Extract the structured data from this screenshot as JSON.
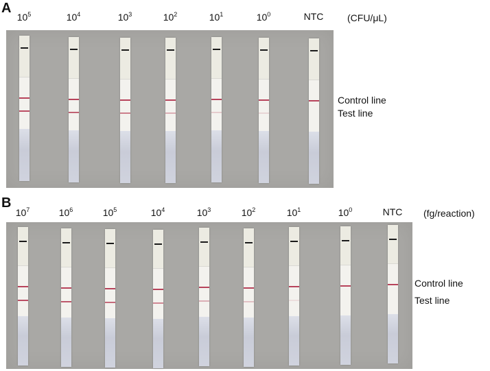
{
  "panel_a": {
    "letter": "A",
    "unit": "(CFU/μL)",
    "lanes": [
      {
        "base": "10",
        "exp": "5"
      },
      {
        "base": "10",
        "exp": "4"
      },
      {
        "base": "10",
        "exp": "3"
      },
      {
        "base": "10",
        "exp": "2"
      },
      {
        "base": "10",
        "exp": "1"
      },
      {
        "base": "10",
        "exp": "0"
      },
      {
        "base": "NTC",
        "exp": ""
      }
    ],
    "control_line_label": "Control line",
    "test_line_label": "Test line"
  },
  "panel_b": {
    "letter": "B",
    "unit": "(fg/reaction)",
    "lanes": [
      {
        "base": "10",
        "exp": "7"
      },
      {
        "base": "10",
        "exp": "6"
      },
      {
        "base": "10",
        "exp": "5"
      },
      {
        "base": "10",
        "exp": "4"
      },
      {
        "base": "10",
        "exp": "3"
      },
      {
        "base": "10",
        "exp": "2"
      },
      {
        "base": "10",
        "exp": "1"
      },
      {
        "base": "10",
        "exp": "0"
      },
      {
        "base": "NTC",
        "exp": ""
      }
    ],
    "control_line_label": "Control line",
    "test_line_label": "Test line"
  },
  "colors": {
    "background": "#a9a8a5",
    "line_red": "#b0304a"
  }
}
